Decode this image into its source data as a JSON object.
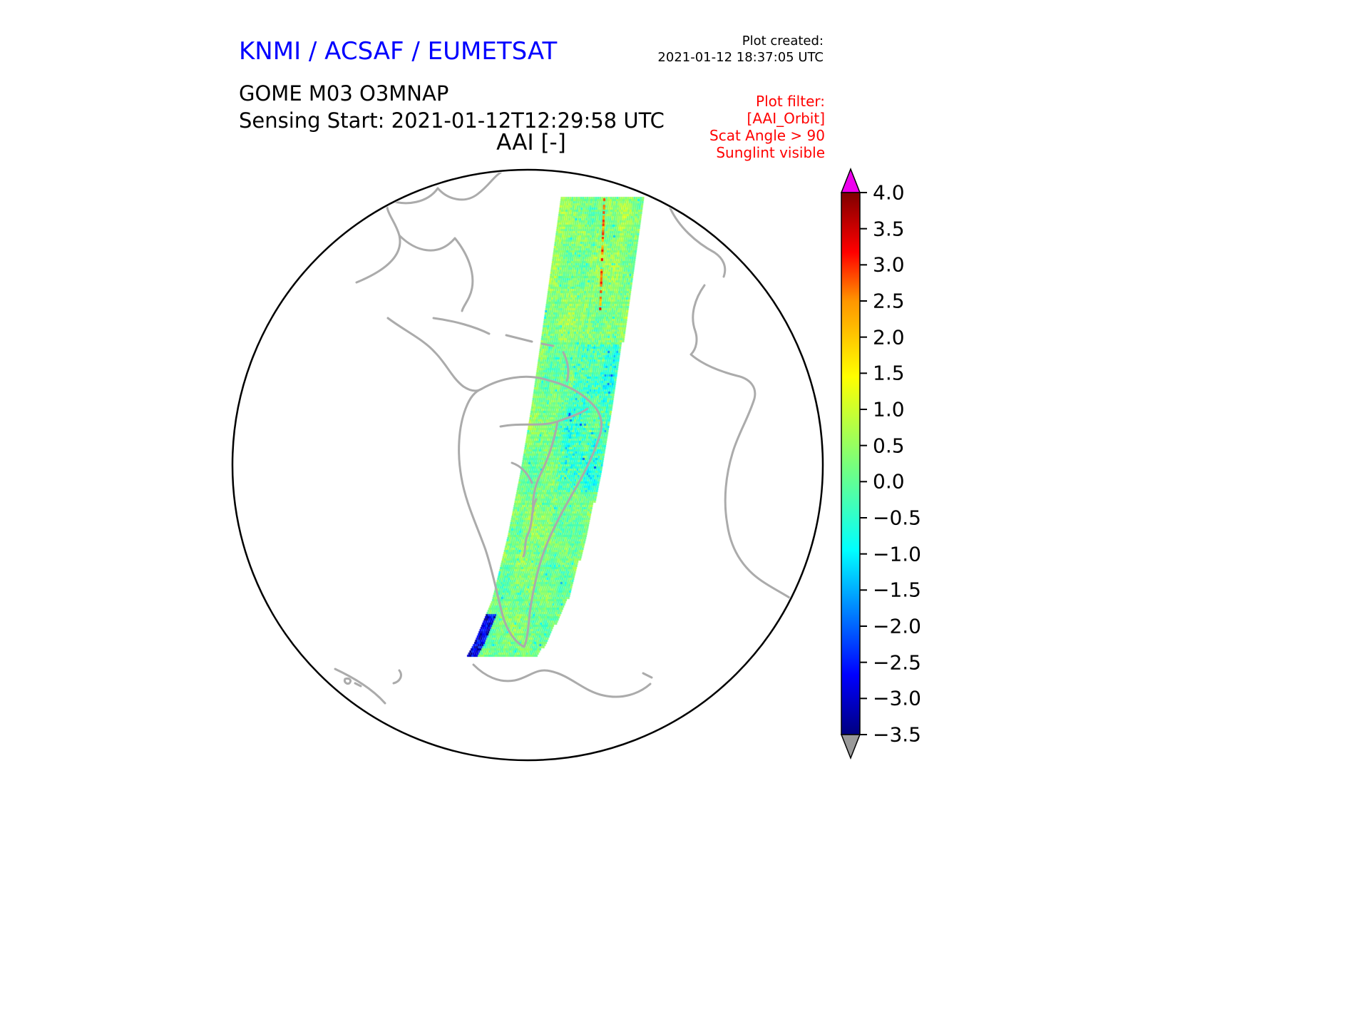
{
  "header": {
    "agency_title": "KNMI / ACSAF / EUMETSAT",
    "plot_created_label": "Plot created:",
    "plot_created_timestamp": "2021-01-12 18:37:05 UTC",
    "product_name": "GOME M03 O3MNAP",
    "sensing_start": "Sensing Start: 2021-01-12T12:29:58 UTC",
    "plot_title": "AAI [-]"
  },
  "filter_note": {
    "color": "#ff0000",
    "lines": [
      "Plot filter:",
      "[AAI_Orbit]",
      "Scat Angle > 90",
      "Sunglint visible"
    ]
  },
  "colors": {
    "agency_title": "#0000ff",
    "coastline": "#ababab",
    "globe_outline": "#000000",
    "background": "#ffffff"
  },
  "chart_data": {
    "type": "heatmap",
    "title": "AAI [-]",
    "quantity": "Absorbing Aerosol Index (dimensionless)",
    "projection": "orthographic globe centered on the South Atlantic / South America",
    "swath_description": "Single GOME-2 Metop (M03) orbit swath running from the tropical North Atlantic south-southwest across eastern South America toward the Southern Ocean; AAI values mostly between -1.5 and +1.5 (greens, cyans, yellows), with scattered dark-blue negative patches, a small very dark blue area at the far southern tip and a thin orange streak near the northern end",
    "value_typical_range": [
      -1.5,
      1.5
    ],
    "colorbar": {
      "range": [
        -3.5,
        4.0
      ],
      "tick_values": [
        4.0,
        3.5,
        3.0,
        2.5,
        2.0,
        1.5,
        1.0,
        0.5,
        0.0,
        -0.5,
        -1.0,
        -1.5,
        -2.0,
        -2.5,
        -3.0,
        -3.5
      ],
      "tick_labels": [
        "4.0",
        "3.5",
        "3.0",
        "2.5",
        "2.0",
        "1.5",
        "1.0",
        "0.5",
        "0.0",
        "−0.5",
        "−1.0",
        "−1.5",
        "−2.0",
        "−2.5",
        "−3.0",
        "−3.5"
      ],
      "over_color": "#ee00ee",
      "under_color": "#9a9a9a",
      "colormap_stops": [
        [
          0.0,
          [
            0,
            0,
            127
          ]
        ],
        [
          0.11,
          [
            0,
            0,
            255
          ]
        ],
        [
          0.34,
          [
            0,
            255,
            255
          ]
        ],
        [
          0.5,
          [
            122,
            255,
            122
          ]
        ],
        [
          0.66,
          [
            255,
            255,
            0
          ]
        ],
        [
          0.8,
          [
            255,
            150,
            0
          ]
        ],
        [
          0.89,
          [
            255,
            0,
            0
          ]
        ],
        [
          1.0,
          [
            127,
            0,
            0
          ]
        ]
      ]
    },
    "swath_geometry": {
      "left_edge": [
        [
          787,
          272
        ],
        [
          772,
          380
        ],
        [
          758,
          480
        ],
        [
          745,
          570
        ],
        [
          730,
          660
        ],
        [
          712,
          750
        ],
        [
          690,
          840
        ],
        [
          665,
          900
        ],
        [
          655,
          918
        ]
      ],
      "right_edge": [
        [
          903,
          276
        ],
        [
          888,
          380
        ],
        [
          872,
          480
        ],
        [
          858,
          570
        ],
        [
          842,
          660
        ],
        [
          822,
          750
        ],
        [
          795,
          840
        ],
        [
          765,
          900
        ],
        [
          748,
          924
        ]
      ]
    }
  }
}
